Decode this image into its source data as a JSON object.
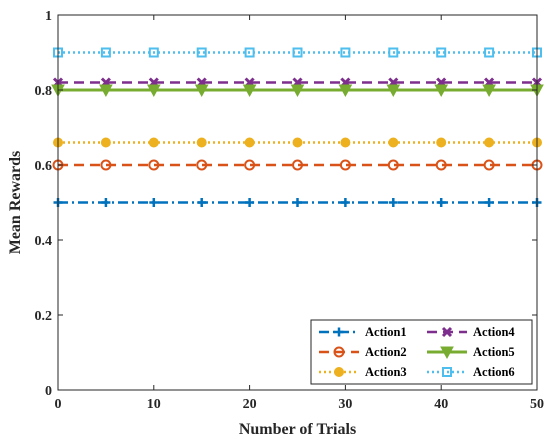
{
  "chart_data": {
    "type": "line",
    "xlabel": "Number of Trials",
    "ylabel": "Mean Rewards",
    "xlim": [
      0,
      50
    ],
    "ylim": [
      0,
      1
    ],
    "xticks": [
      "0",
      "10",
      "20",
      "30",
      "40",
      "50"
    ],
    "yticks": [
      "0",
      "0.2",
      "0.4",
      "0.6",
      "0.8",
      "1"
    ],
    "grid": false,
    "legend_position": "bottom-right",
    "x": [
      0,
      5,
      10,
      15,
      20,
      25,
      30,
      35,
      40,
      45,
      50
    ],
    "series": [
      {
        "name": "Action1",
        "color": "#0072BD",
        "line_style": "dash-dot",
        "marker": "plus",
        "values": [
          0.5,
          0.5,
          0.5,
          0.5,
          0.5,
          0.5,
          0.5,
          0.5,
          0.5,
          0.5,
          0.5
        ]
      },
      {
        "name": "Action2",
        "color": "#D95319",
        "line_style": "dashed",
        "marker": "circle",
        "values": [
          0.6,
          0.6,
          0.6,
          0.6,
          0.6,
          0.6,
          0.6,
          0.6,
          0.6,
          0.6,
          0.6
        ]
      },
      {
        "name": "Action3",
        "color": "#EDB120",
        "line_style": "dotted",
        "marker": "filled-circle",
        "values": [
          0.66,
          0.66,
          0.66,
          0.66,
          0.66,
          0.66,
          0.66,
          0.66,
          0.66,
          0.66,
          0.66
        ]
      },
      {
        "name": "Action4",
        "color": "#7E2F8E",
        "line_style": "dashed",
        "marker": "x",
        "values": [
          0.82,
          0.82,
          0.82,
          0.82,
          0.82,
          0.82,
          0.82,
          0.82,
          0.82,
          0.82,
          0.82
        ]
      },
      {
        "name": "Action5",
        "color": "#77AC30",
        "line_style": "solid",
        "marker": "triangle-down",
        "values": [
          0.8,
          0.8,
          0.8,
          0.8,
          0.8,
          0.8,
          0.8,
          0.8,
          0.8,
          0.8,
          0.8
        ]
      },
      {
        "name": "Action6",
        "color": "#4DBEEE",
        "line_style": "dotted",
        "marker": "square",
        "values": [
          0.9,
          0.9,
          0.9,
          0.9,
          0.9,
          0.9,
          0.9,
          0.9,
          0.9,
          0.9,
          0.9
        ]
      }
    ]
  }
}
